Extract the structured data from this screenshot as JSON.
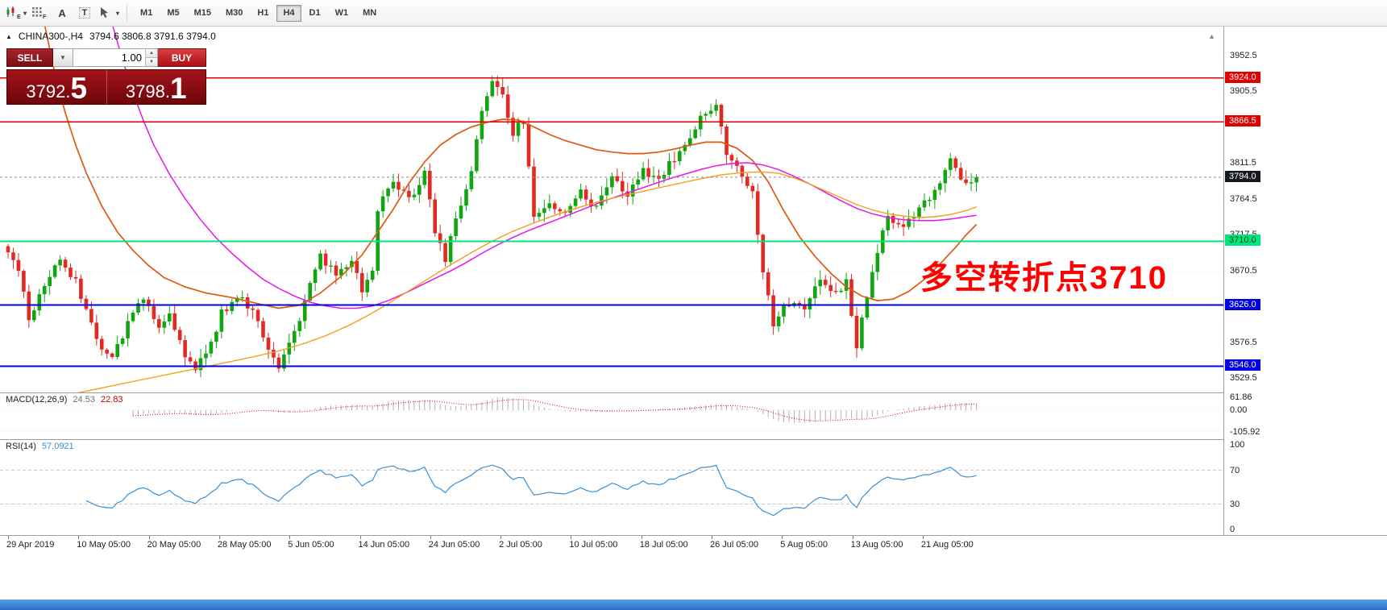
{
  "icons": {
    "collapse_glyph": "▲",
    "dropdown_glyph": "▼",
    "spin_up": "▲",
    "spin_down": "▼",
    "shift_glyph": "▲"
  },
  "toolbar": {
    "tools": [
      {
        "name": "candle-chart-icon",
        "sub": "E",
        "dropdown": true
      },
      {
        "name": "chart-grid-icon",
        "sub": "F"
      },
      {
        "name": "text-label-icon",
        "glyph": "A"
      },
      {
        "name": "text-frame-icon",
        "glyph": "T",
        "boxed": true
      },
      {
        "name": "cursor-tools-icon",
        "dropdown": true
      }
    ],
    "timeframes": [
      {
        "label": "M1"
      },
      {
        "label": "M5"
      },
      {
        "label": "M15"
      },
      {
        "label": "M30"
      },
      {
        "label": "H1"
      },
      {
        "label": "H4",
        "active": true
      },
      {
        "label": "D1"
      },
      {
        "label": "W1"
      },
      {
        "label": "MN"
      }
    ]
  },
  "chart": {
    "symbol_tf": "CHINA300-,H4",
    "ohlc": "3794.6 3806.8 3791.6 3794.0"
  },
  "trade_panel": {
    "sell_label": "SELL",
    "buy_label": "BUY",
    "volume": "1.00",
    "sell_price_main": "3792.",
    "sell_price_big": "5",
    "buy_price_main": "3798.",
    "buy_price_big": "1"
  },
  "indicators": {
    "macd": {
      "name": "MACD(12,26,9)",
      "main": "24.53",
      "signal": "22.83"
    },
    "rsi": {
      "name": "RSI(14)",
      "value": "57.0921"
    }
  },
  "price_axis": {
    "ticks": [
      {
        "label": "3952.5",
        "price": 3952.5
      },
      {
        "label": "3905.5",
        "price": 3905.5
      },
      {
        "label": "3811.5",
        "price": 3811.5
      },
      {
        "label": "3764.5",
        "price": 3764.5
      },
      {
        "label": "3717.5",
        "price": 3717.5
      },
      {
        "label": "3670.5",
        "price": 3670.5
      },
      {
        "label": "3576.5",
        "price": 3576.5
      },
      {
        "label": "3529.5",
        "price": 3529.5
      }
    ],
    "badges": [
      {
        "label": "3924.0",
        "price": 3924.0,
        "bg": "#e00000",
        "fg": "#ffffff"
      },
      {
        "label": "3866.5",
        "price": 3866.5,
        "bg": "#e00000",
        "fg": "#ffffff"
      },
      {
        "label": "3794.0",
        "price": 3794.0,
        "bg": "#15181e",
        "fg": "#ffffff"
      },
      {
        "label": "3710.0",
        "price": 3710.0,
        "bg": "#00e67e",
        "fg": "#00421f"
      },
      {
        "label": "3626.0",
        "price": 3626.0,
        "bg": "#0000e0",
        "fg": "#ffffff"
      },
      {
        "label": "3546.0",
        "price": 3546.0,
        "bg": "#0000e0",
        "fg": "#ffffff"
      }
    ]
  },
  "macd_axis": [
    {
      "label": "61.86",
      "value": 61.86
    },
    {
      "label": "0.00",
      "value": 0
    },
    {
      "label": "-105.92",
      "value": -105.92
    }
  ],
  "rsi_axis": [
    {
      "label": "100",
      "value": 100
    },
    {
      "label": "70",
      "value": 70
    },
    {
      "label": "30",
      "value": 30
    },
    {
      "label": "0",
      "value": 0
    }
  ],
  "dates": [
    "29 Apr 2019",
    "10 May 05:00",
    "20 May 05:00",
    "28 May 05:00",
    "5 Jun 05:00",
    "14 Jun 05:00",
    "24 Jun 05:00",
    "2 Jul 05:00",
    "10 Jul 05:00",
    "18 Jul 05:00",
    "26 Jul 05:00",
    "5 Aug 05:00",
    "13 Aug 05:00",
    "21 Aug 05:00"
  ],
  "annotation": {
    "text": "多空转折点3710",
    "color": "#ff0000"
  },
  "chart_data": {
    "type": "candlestick",
    "symbol": "CHINA300-",
    "timeframe": "H4",
    "last_close": 3794.0,
    "current_price": 3794.0,
    "candle_count": 187,
    "close_anchors": [
      [
        0,
        3700
      ],
      [
        2,
        3668
      ],
      [
        4,
        3608
      ],
      [
        7,
        3652
      ],
      [
        10,
        3688
      ],
      [
        13,
        3655
      ],
      [
        15,
        3618
      ],
      [
        18,
        3572
      ],
      [
        20,
        3556
      ],
      [
        23,
        3604
      ],
      [
        26,
        3636
      ],
      [
        29,
        3592
      ],
      [
        31,
        3618
      ],
      [
        34,
        3560
      ],
      [
        36,
        3544
      ],
      [
        39,
        3575
      ],
      [
        41,
        3615
      ],
      [
        44,
        3636
      ],
      [
        47,
        3622
      ],
      [
        50,
        3572
      ],
      [
        52,
        3545
      ],
      [
        54,
        3580
      ],
      [
        56,
        3610
      ],
      [
        58,
        3655
      ],
      [
        60,
        3690
      ],
      [
        63,
        3664
      ],
      [
        66,
        3686
      ],
      [
        68,
        3645
      ],
      [
        70,
        3668
      ],
      [
        71,
        3755
      ],
      [
        74,
        3788
      ],
      [
        77,
        3762
      ],
      [
        80,
        3800
      ],
      [
        82,
        3725
      ],
      [
        84,
        3680
      ],
      [
        86,
        3742
      ],
      [
        89,
        3800
      ],
      [
        91,
        3880
      ],
      [
        93,
        3918
      ],
      [
        95,
        3898
      ],
      [
        97,
        3852
      ],
      [
        99,
        3868
      ],
      [
        101,
        3742
      ],
      [
        104,
        3762
      ],
      [
        107,
        3742
      ],
      [
        110,
        3778
      ],
      [
        113,
        3752
      ],
      [
        116,
        3800
      ],
      [
        119,
        3768
      ],
      [
        122,
        3806
      ],
      [
        125,
        3788
      ],
      [
        128,
        3820
      ],
      [
        131,
        3850
      ],
      [
        134,
        3880
      ],
      [
        136,
        3892
      ],
      [
        138,
        3826
      ],
      [
        141,
        3800
      ],
      [
        143,
        3776
      ],
      [
        145,
        3672
      ],
      [
        147,
        3600
      ],
      [
        150,
        3630
      ],
      [
        153,
        3618
      ],
      [
        156,
        3662
      ],
      [
        159,
        3640
      ],
      [
        161,
        3660
      ],
      [
        163,
        3572
      ],
      [
        165,
        3638
      ],
      [
        167,
        3700
      ],
      [
        169,
        3738
      ],
      [
        172,
        3726
      ],
      [
        175,
        3750
      ],
      [
        178,
        3776
      ],
      [
        181,
        3820
      ],
      [
        183,
        3788
      ],
      [
        186,
        3794
      ]
    ],
    "moving_averages": [
      {
        "name": "ma-fast",
        "color": "#e0570e",
        "width": 1.7,
        "points": [
          [
            7,
            3995
          ],
          [
            9,
            3930
          ],
          [
            11,
            3878
          ],
          [
            13,
            3836
          ],
          [
            15,
            3800
          ],
          [
            18,
            3756
          ],
          [
            21,
            3722
          ],
          [
            24,
            3698
          ],
          [
            27,
            3678
          ],
          [
            30,
            3662
          ],
          [
            34,
            3650
          ],
          [
            38,
            3642
          ],
          [
            43,
            3636
          ],
          [
            48,
            3628
          ],
          [
            52,
            3622
          ],
          [
            56,
            3626
          ],
          [
            60,
            3642
          ],
          [
            64,
            3664
          ],
          [
            68,
            3692
          ],
          [
            71,
            3722
          ],
          [
            74,
            3752
          ],
          [
            77,
            3786
          ],
          [
            80,
            3814
          ],
          [
            83,
            3836
          ],
          [
            86,
            3850
          ],
          [
            89,
            3860
          ],
          [
            92,
            3866
          ],
          [
            95,
            3870
          ],
          [
            98,
            3869
          ],
          [
            101,
            3860
          ],
          [
            104,
            3850
          ],
          [
            107,
            3842
          ],
          [
            110,
            3836
          ],
          [
            113,
            3830
          ],
          [
            116,
            3827
          ],
          [
            119,
            3825
          ],
          [
            122,
            3825
          ],
          [
            125,
            3827
          ],
          [
            128,
            3831
          ],
          [
            131,
            3836
          ],
          [
            134,
            3840
          ],
          [
            137,
            3840
          ],
          [
            140,
            3832
          ],
          [
            143,
            3816
          ],
          [
            146,
            3788
          ],
          [
            149,
            3750
          ],
          [
            152,
            3716
          ],
          [
            155,
            3690
          ],
          [
            158,
            3668
          ],
          [
            161,
            3650
          ],
          [
            164,
            3638
          ],
          [
            167,
            3632
          ],
          [
            170,
            3634
          ],
          [
            173,
            3644
          ],
          [
            176,
            3660
          ],
          [
            179,
            3680
          ],
          [
            182,
            3702
          ],
          [
            184,
            3718
          ],
          [
            186,
            3732
          ]
        ]
      },
      {
        "name": "ma-mid",
        "color": "#e816e8",
        "width": 1.5,
        "points": [
          [
            20,
            3995
          ],
          [
            22,
            3948
          ],
          [
            24,
            3905
          ],
          [
            26,
            3868
          ],
          [
            28,
            3836
          ],
          [
            31,
            3798
          ],
          [
            34,
            3766
          ],
          [
            37,
            3738
          ],
          [
            40,
            3714
          ],
          [
            43,
            3694
          ],
          [
            46,
            3676
          ],
          [
            49,
            3660
          ],
          [
            52,
            3648
          ],
          [
            55,
            3638
          ],
          [
            58,
            3630
          ],
          [
            61,
            3625
          ],
          [
            64,
            3622
          ],
          [
            67,
            3622
          ],
          [
            70,
            3625
          ],
          [
            73,
            3632
          ],
          [
            76,
            3641
          ],
          [
            79,
            3651
          ],
          [
            82,
            3661
          ],
          [
            85,
            3671
          ],
          [
            88,
            3682
          ],
          [
            91,
            3694
          ],
          [
            94,
            3705
          ],
          [
            97,
            3715
          ],
          [
            100,
            3724
          ],
          [
            103,
            3732
          ],
          [
            106,
            3740
          ],
          [
            109,
            3748
          ],
          [
            112,
            3756
          ],
          [
            115,
            3764
          ],
          [
            118,
            3771
          ],
          [
            121,
            3778
          ],
          [
            124,
            3785
          ],
          [
            127,
            3792
          ],
          [
            130,
            3798
          ],
          [
            133,
            3804
          ],
          [
            136,
            3809
          ],
          [
            139,
            3812
          ],
          [
            142,
            3813
          ],
          [
            145,
            3810
          ],
          [
            148,
            3804
          ],
          [
            151,
            3795
          ],
          [
            154,
            3785
          ],
          [
            157,
            3774
          ],
          [
            160,
            3763
          ],
          [
            163,
            3753
          ],
          [
            166,
            3746
          ],
          [
            169,
            3741
          ],
          [
            172,
            3738
          ],
          [
            175,
            3737
          ],
          [
            178,
            3737
          ],
          [
            181,
            3739
          ],
          [
            184,
            3742
          ],
          [
            186,
            3744
          ]
        ]
      },
      {
        "name": "ma-slow",
        "color": "#f0a11c",
        "width": 1.4,
        "points": [
          [
            12,
            3509
          ],
          [
            17,
            3516
          ],
          [
            22,
            3523
          ],
          [
            27,
            3530
          ],
          [
            32,
            3537
          ],
          [
            37,
            3544
          ],
          [
            42,
            3551
          ],
          [
            47,
            3558
          ],
          [
            52,
            3566
          ],
          [
            57,
            3576
          ],
          [
            61,
            3586
          ],
          [
            65,
            3598
          ],
          [
            69,
            3612
          ],
          [
            73,
            3628
          ],
          [
            77,
            3645
          ],
          [
            81,
            3662
          ],
          [
            85,
            3679
          ],
          [
            89,
            3695
          ],
          [
            93,
            3710
          ],
          [
            97,
            3723
          ],
          [
            101,
            3734
          ],
          [
            105,
            3744
          ],
          [
            109,
            3753
          ],
          [
            113,
            3761
          ],
          [
            117,
            3768
          ],
          [
            121,
            3774
          ],
          [
            125,
            3780
          ],
          [
            129,
            3786
          ],
          [
            133,
            3792
          ],
          [
            137,
            3797
          ],
          [
            141,
            3800
          ],
          [
            145,
            3801
          ],
          [
            148,
            3799
          ],
          [
            151,
            3793
          ],
          [
            154,
            3785
          ],
          [
            157,
            3776
          ],
          [
            160,
            3767
          ],
          [
            163,
            3758
          ],
          [
            166,
            3751
          ],
          [
            169,
            3746
          ],
          [
            172,
            3743
          ],
          [
            175,
            3741
          ],
          [
            178,
            3742
          ],
          [
            181,
            3745
          ],
          [
            184,
            3750
          ],
          [
            186,
            3755
          ]
        ]
      }
    ],
    "levels": [
      {
        "price": 3924.0,
        "color": "#e00000",
        "width": 1.5
      },
      {
        "price": 3866.5,
        "color": "#e00000",
        "width": 1.5
      },
      {
        "price": 3710.0,
        "color": "#00e67e",
        "width": 2
      },
      {
        "price": 3626.0,
        "color": "#0000e0",
        "width": 2
      },
      {
        "price": 3546.0,
        "color": "#0000e0",
        "width": 2
      }
    ],
    "grid_prices": [
      3952.5,
      3905.5,
      3858.5,
      3811.5,
      3764.5,
      3717.5,
      3670.5,
      3623.5,
      3576.5,
      3529.5
    ],
    "candle_colors": {
      "bull": "#11a512",
      "bear": "#e22a23"
    },
    "macd": {
      "fast": 12,
      "slow": 26,
      "signal": 9,
      "hist_color": "#b2b2b2",
      "signal_color": "#d40000"
    },
    "rsi": {
      "period": 14,
      "color": "#3b8fd4",
      "levels": [
        30,
        70
      ]
    }
  }
}
